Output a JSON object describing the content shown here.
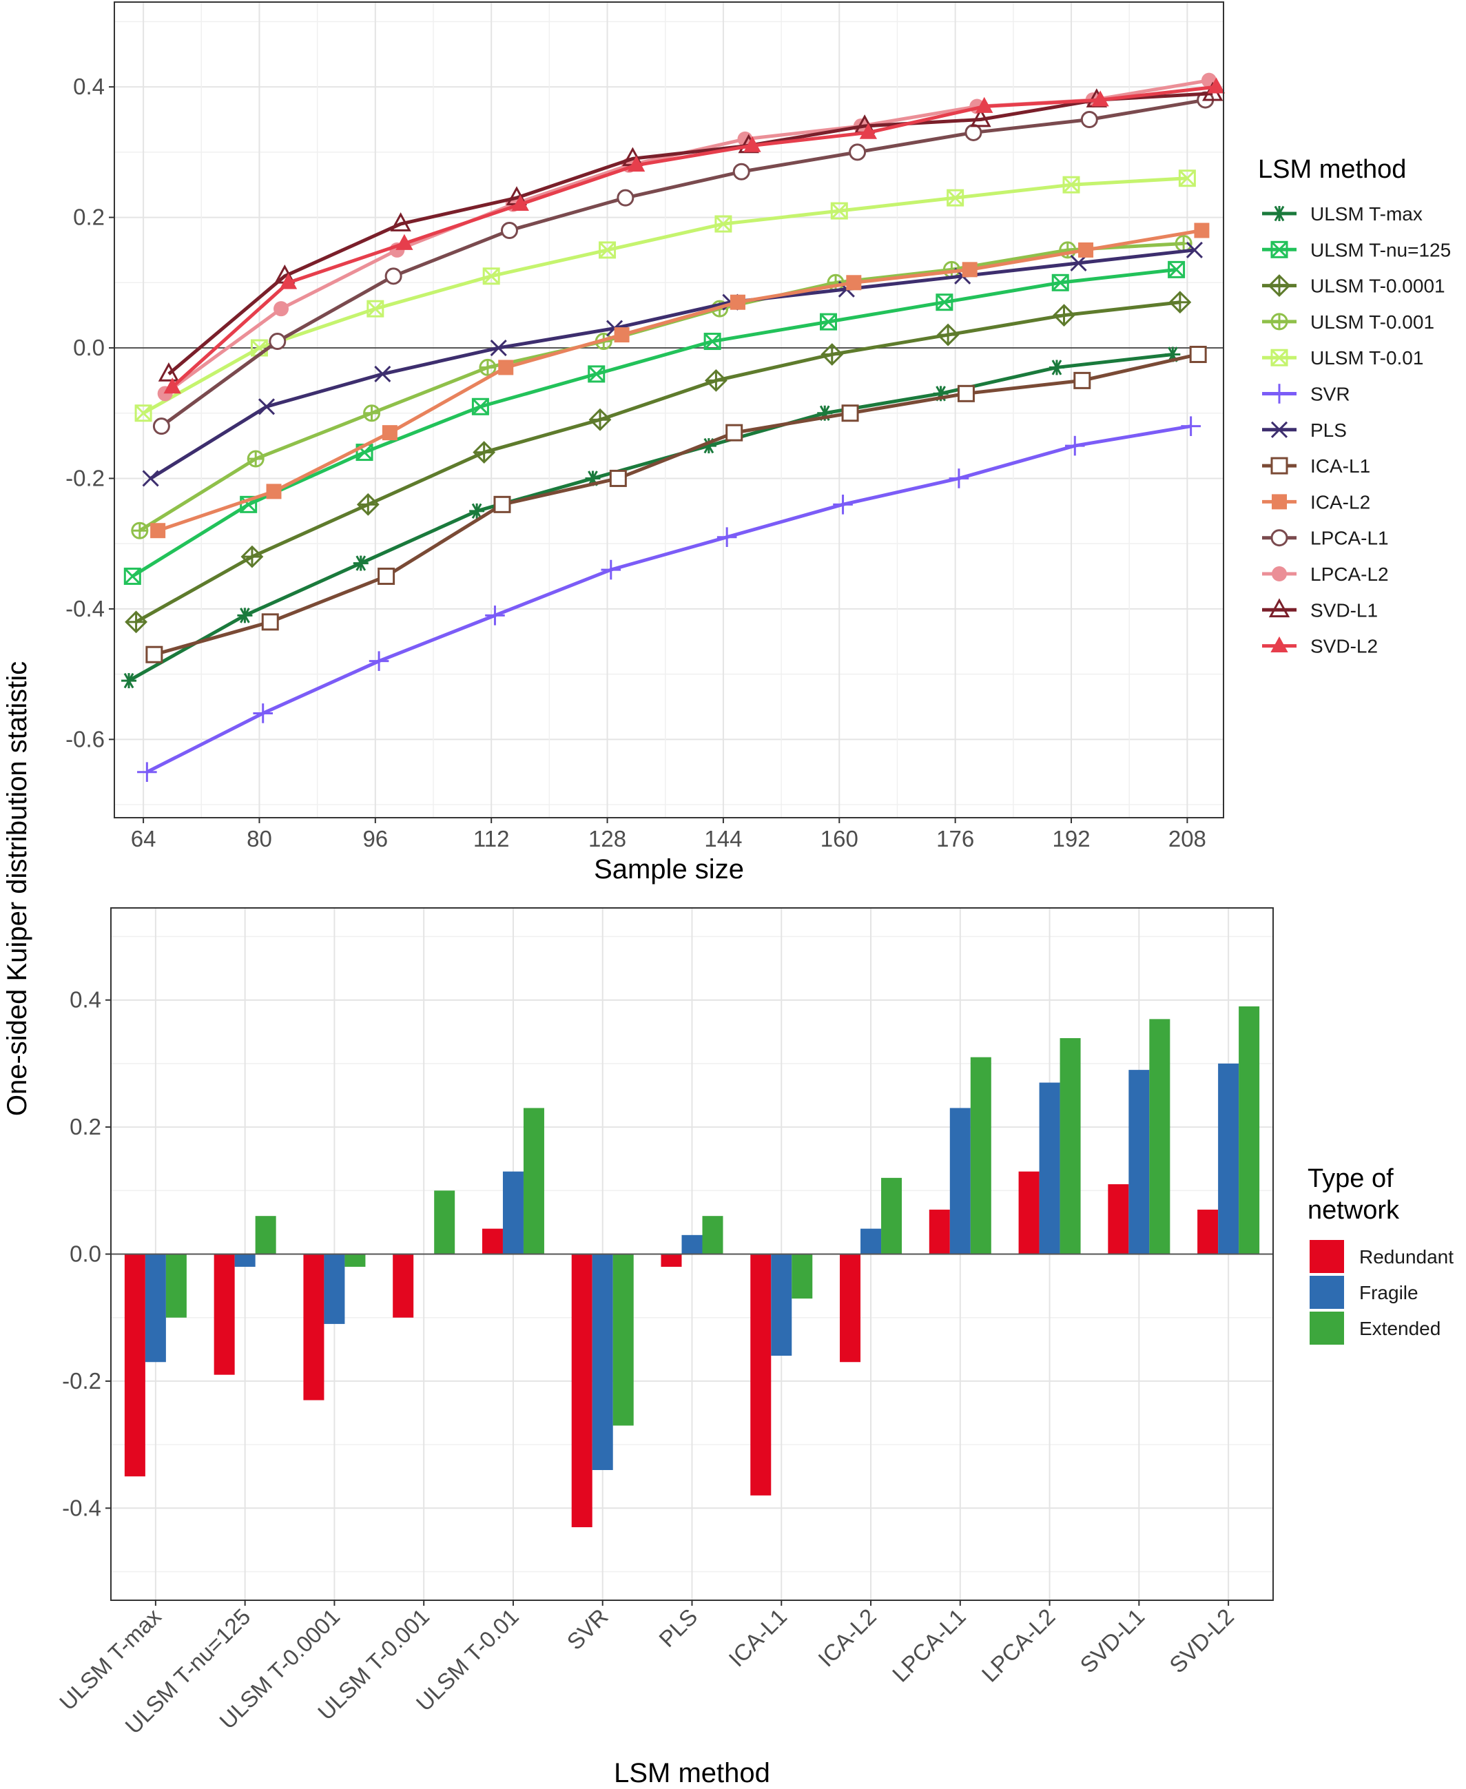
{
  "y_axis_label": "One-sided Kuiper distribution statistic",
  "chart_data": [
    {
      "type": "line",
      "xlabel": "Sample size",
      "ylabel": "One-sided Kuiper distribution statistic",
      "x_ticks": [
        64,
        80,
        96,
        112,
        128,
        144,
        160,
        176,
        192,
        208
      ],
      "xlim": [
        60,
        213
      ],
      "ylim": [
        -0.72,
        0.53
      ],
      "y_ticks": [
        -0.6,
        -0.4,
        -0.2,
        0.0,
        0.2,
        0.4
      ],
      "y_tick_labels": [
        "-0.6",
        "-0.4",
        "-0.2",
        "0.0",
        "0.2",
        "0.4"
      ],
      "reference_line_y": 0,
      "grid": true,
      "legend_title": "LSM method",
      "legend_position": "right",
      "series": [
        {
          "name": "ULSM T-max",
          "color": "#1a7a3c",
          "marker": "asterisk",
          "x": [
            62,
            78,
            94,
            110,
            126,
            142,
            158,
            174,
            190,
            206
          ],
          "values": [
            -0.51,
            -0.41,
            -0.33,
            -0.25,
            -0.2,
            -0.15,
            -0.1,
            -0.07,
            -0.03,
            -0.01
          ]
        },
        {
          "name": "ULSM T-nu=125",
          "color": "#22c25a",
          "marker": "square-x",
          "x": [
            62.5,
            78.5,
            94.5,
            110.5,
            126.5,
            142.5,
            158.5,
            174.5,
            190.5,
            206.5
          ],
          "values": [
            -0.35,
            -0.24,
            -0.16,
            -0.09,
            -0.04,
            0.01,
            0.04,
            0.07,
            0.1,
            0.12
          ]
        },
        {
          "name": "ULSM T-0.0001",
          "color": "#5e7b2c",
          "marker": "diamond-plus",
          "x": [
            63,
            79,
            95,
            111,
            127,
            143,
            159,
            175,
            191,
            207
          ],
          "values": [
            -0.42,
            -0.32,
            -0.24,
            -0.16,
            -0.11,
            -0.05,
            -0.01,
            0.02,
            0.05,
            0.07
          ]
        },
        {
          "name": "ULSM T-0.001",
          "color": "#8fc04a",
          "marker": "circle-plus",
          "x": [
            63.5,
            79.5,
            95.5,
            111.5,
            127.5,
            143.5,
            159.5,
            175.5,
            191.5,
            207.5
          ],
          "values": [
            -0.28,
            -0.17,
            -0.1,
            -0.03,
            0.01,
            0.06,
            0.1,
            0.12,
            0.15,
            0.16
          ]
        },
        {
          "name": "ULSM T-0.01",
          "color": "#c5f46e",
          "marker": "square-x",
          "x": [
            64,
            80,
            96,
            112,
            128,
            144,
            160,
            176,
            192,
            208
          ],
          "values": [
            -0.1,
            0.0,
            0.06,
            0.11,
            0.15,
            0.19,
            0.21,
            0.23,
            0.25,
            0.26
          ]
        },
        {
          "name": "SVR",
          "color": "#7b5cf7",
          "marker": "plus",
          "x": [
            64.5,
            80.5,
            96.5,
            112.5,
            128.5,
            144.5,
            160.5,
            176.5,
            192.5,
            208.5
          ],
          "values": [
            -0.65,
            -0.56,
            -0.48,
            -0.41,
            -0.34,
            -0.29,
            -0.24,
            -0.2,
            -0.15,
            -0.12
          ]
        },
        {
          "name": "PLS",
          "color": "#3d2e6e",
          "marker": "cross",
          "x": [
            65,
            81,
            97,
            113,
            129,
            145,
            161,
            177,
            193,
            209
          ],
          "values": [
            -0.2,
            -0.09,
            -0.04,
            0.0,
            0.03,
            0.07,
            0.09,
            0.11,
            0.13,
            0.15
          ]
        },
        {
          "name": "ICA-L1",
          "color": "#7a4a35",
          "marker": "square-open",
          "x": [
            65.5,
            81.5,
            97.5,
            113.5,
            129.5,
            145.5,
            161.5,
            177.5,
            193.5,
            209.5
          ],
          "values": [
            -0.47,
            -0.42,
            -0.35,
            -0.24,
            -0.2,
            -0.13,
            -0.1,
            -0.07,
            -0.05,
            -0.01
          ]
        },
        {
          "name": "ICA-L2",
          "color": "#e8825c",
          "marker": "square-filled",
          "x": [
            66,
            82,
            98,
            114,
            130,
            146,
            162,
            178,
            194,
            210
          ],
          "values": [
            -0.28,
            -0.22,
            -0.13,
            -0.03,
            0.02,
            0.07,
            0.1,
            0.12,
            0.15,
            0.18
          ]
        },
        {
          "name": "LPCA-L1",
          "color": "#7a4a4e",
          "marker": "circle-open",
          "x": [
            66.5,
            82.5,
            98.5,
            114.5,
            130.5,
            146.5,
            162.5,
            178.5,
            194.5,
            210.5
          ],
          "values": [
            -0.12,
            0.01,
            0.11,
            0.18,
            0.23,
            0.27,
            0.3,
            0.33,
            0.35,
            0.38
          ]
        },
        {
          "name": "LPCA-L2",
          "color": "#eb8f97",
          "marker": "circle-filled",
          "x": [
            67,
            83,
            99,
            115,
            131,
            147,
            163,
            179,
            195,
            211
          ],
          "values": [
            -0.07,
            0.06,
            0.15,
            0.22,
            0.28,
            0.32,
            0.34,
            0.37,
            0.38,
            0.41
          ]
        },
        {
          "name": "SVD-L1",
          "color": "#7a1f2a",
          "marker": "triangle-open",
          "x": [
            67.5,
            83.5,
            99.5,
            115.5,
            131.5,
            147.5,
            163.5,
            179.5,
            195.5,
            211.5
          ],
          "values": [
            -0.04,
            0.11,
            0.19,
            0.23,
            0.29,
            0.31,
            0.34,
            0.35,
            0.38,
            0.39
          ]
        },
        {
          "name": "SVD-L2",
          "color": "#e63e4c",
          "marker": "triangle-filled",
          "x": [
            68,
            84,
            100,
            116,
            132,
            148,
            164,
            180,
            196,
            212
          ],
          "values": [
            -0.06,
            0.1,
            0.16,
            0.22,
            0.28,
            0.31,
            0.33,
            0.37,
            0.38,
            0.4
          ]
        }
      ]
    },
    {
      "type": "bar",
      "xlabel": "LSM method",
      "ylabel": "One-sided Kuiper distribution statistic",
      "categories": [
        "ULSM T-max",
        "ULSM T-nu=125",
        "ULSM T-0.0001",
        "ULSM T-0.001",
        "ULSM T-0.01",
        "SVR",
        "PLS",
        "ICA-L1",
        "ICA-L2",
        "LPCA-L1",
        "LPCA-L2",
        "SVD-L1",
        "SVD-L2"
      ],
      "ylim": [
        -0.545,
        0.545
      ],
      "y_ticks": [
        -0.4,
        -0.2,
        0.0,
        0.2,
        0.4
      ],
      "y_tick_labels": [
        "-0.4",
        "-0.2",
        "0.0",
        "0.2",
        "0.4"
      ],
      "reference_line_y": 0,
      "grid": true,
      "legend_title": "Type of network",
      "legend_position": "right",
      "series": [
        {
          "name": "Redundant",
          "color": "#e3061f",
          "values": [
            -0.35,
            -0.19,
            -0.23,
            -0.1,
            0.04,
            -0.43,
            -0.02,
            -0.38,
            -0.17,
            0.07,
            0.13,
            0.11,
            0.07
          ]
        },
        {
          "name": "Fragile",
          "color": "#2e6cb1",
          "values": [
            -0.17,
            -0.02,
            -0.11,
            0.0,
            0.13,
            -0.34,
            0.03,
            -0.16,
            0.04,
            0.23,
            0.27,
            0.29,
            0.3
          ]
        },
        {
          "name": "Extended",
          "color": "#3da73d",
          "values": [
            -0.1,
            0.06,
            -0.02,
            0.1,
            0.23,
            -0.27,
            0.06,
            -0.07,
            0.12,
            0.31,
            0.34,
            0.37,
            0.39
          ]
        }
      ]
    }
  ]
}
